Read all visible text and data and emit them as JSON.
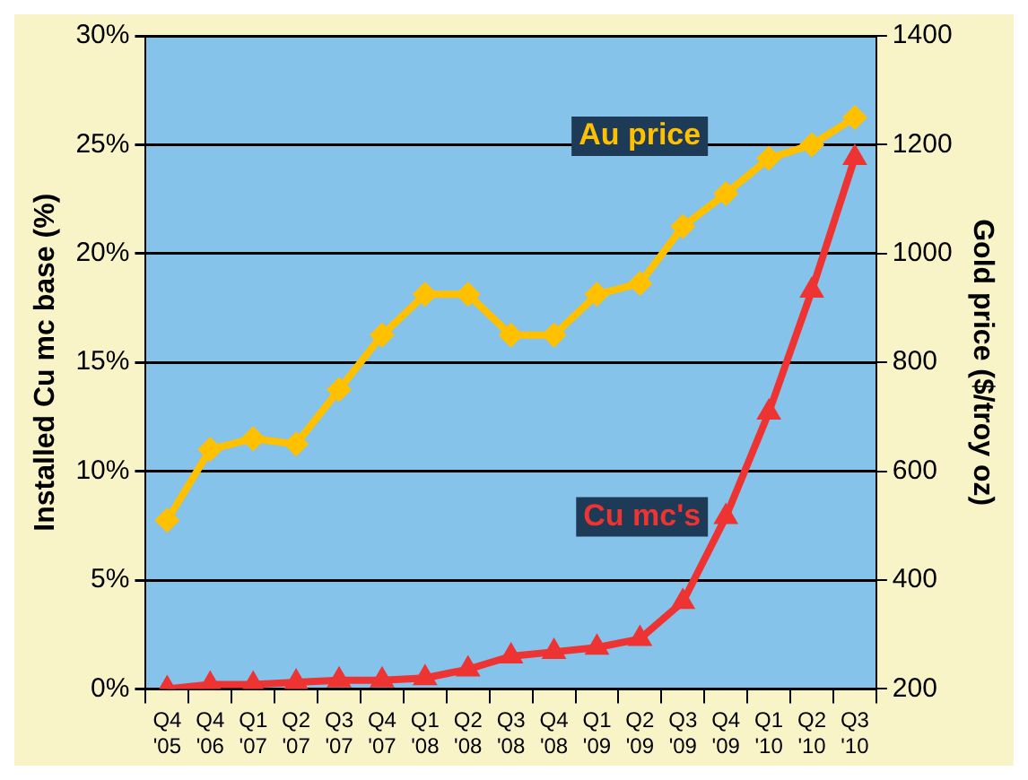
{
  "chart_data": {
    "type": "line",
    "ylabel": "Installed Cu mc base (%)",
    "y2label": "Gold price ($/troy oz)",
    "categories": [
      "Q4 '05",
      "Q4 '06",
      "Q1 '07",
      "Q2 '07",
      "Q3 '07",
      "Q4 '07",
      "Q1 '08",
      "Q2 '08",
      "Q3 '08",
      "Q4 '08",
      "Q1 '09",
      "Q2 '09",
      "Q3 '09",
      "Q4 '09",
      "Q1 '10",
      "Q2 '10",
      "Q3 '10"
    ],
    "series": [
      {
        "name": "Au price",
        "color": "#ffc000",
        "axis": "y2",
        "marker": "diamond",
        "values": [
          510,
          640,
          660,
          650,
          750,
          850,
          925,
          925,
          850,
          850,
          925,
          945,
          1050,
          1110,
          1175,
          1200,
          1250
        ]
      },
      {
        "name": "Cu mc's",
        "color": "#ee3333",
        "axis": "y",
        "marker": "triangle",
        "values": [
          0,
          0.2,
          0.2,
          0.3,
          0.4,
          0.4,
          0.5,
          0.9,
          1.5,
          1.7,
          1.9,
          2.3,
          4.0,
          7.9,
          12.7,
          18.3,
          24.4
        ]
      }
    ],
    "ylim": [
      0,
      30
    ],
    "yticks": [
      {
        "value": 0,
        "label": "0%"
      },
      {
        "value": 5,
        "label": "5%"
      },
      {
        "value": 10,
        "label": "10%"
      },
      {
        "value": 15,
        "label": "15%"
      },
      {
        "value": 20,
        "label": "20%"
      },
      {
        "value": 25,
        "label": "25%"
      },
      {
        "value": 30,
        "label": "30%"
      }
    ],
    "y2lim": [
      200,
      1400
    ],
    "y2ticks": [
      200,
      400,
      600,
      800,
      1000,
      1200,
      1400
    ],
    "grid": "y",
    "legend": false
  }
}
